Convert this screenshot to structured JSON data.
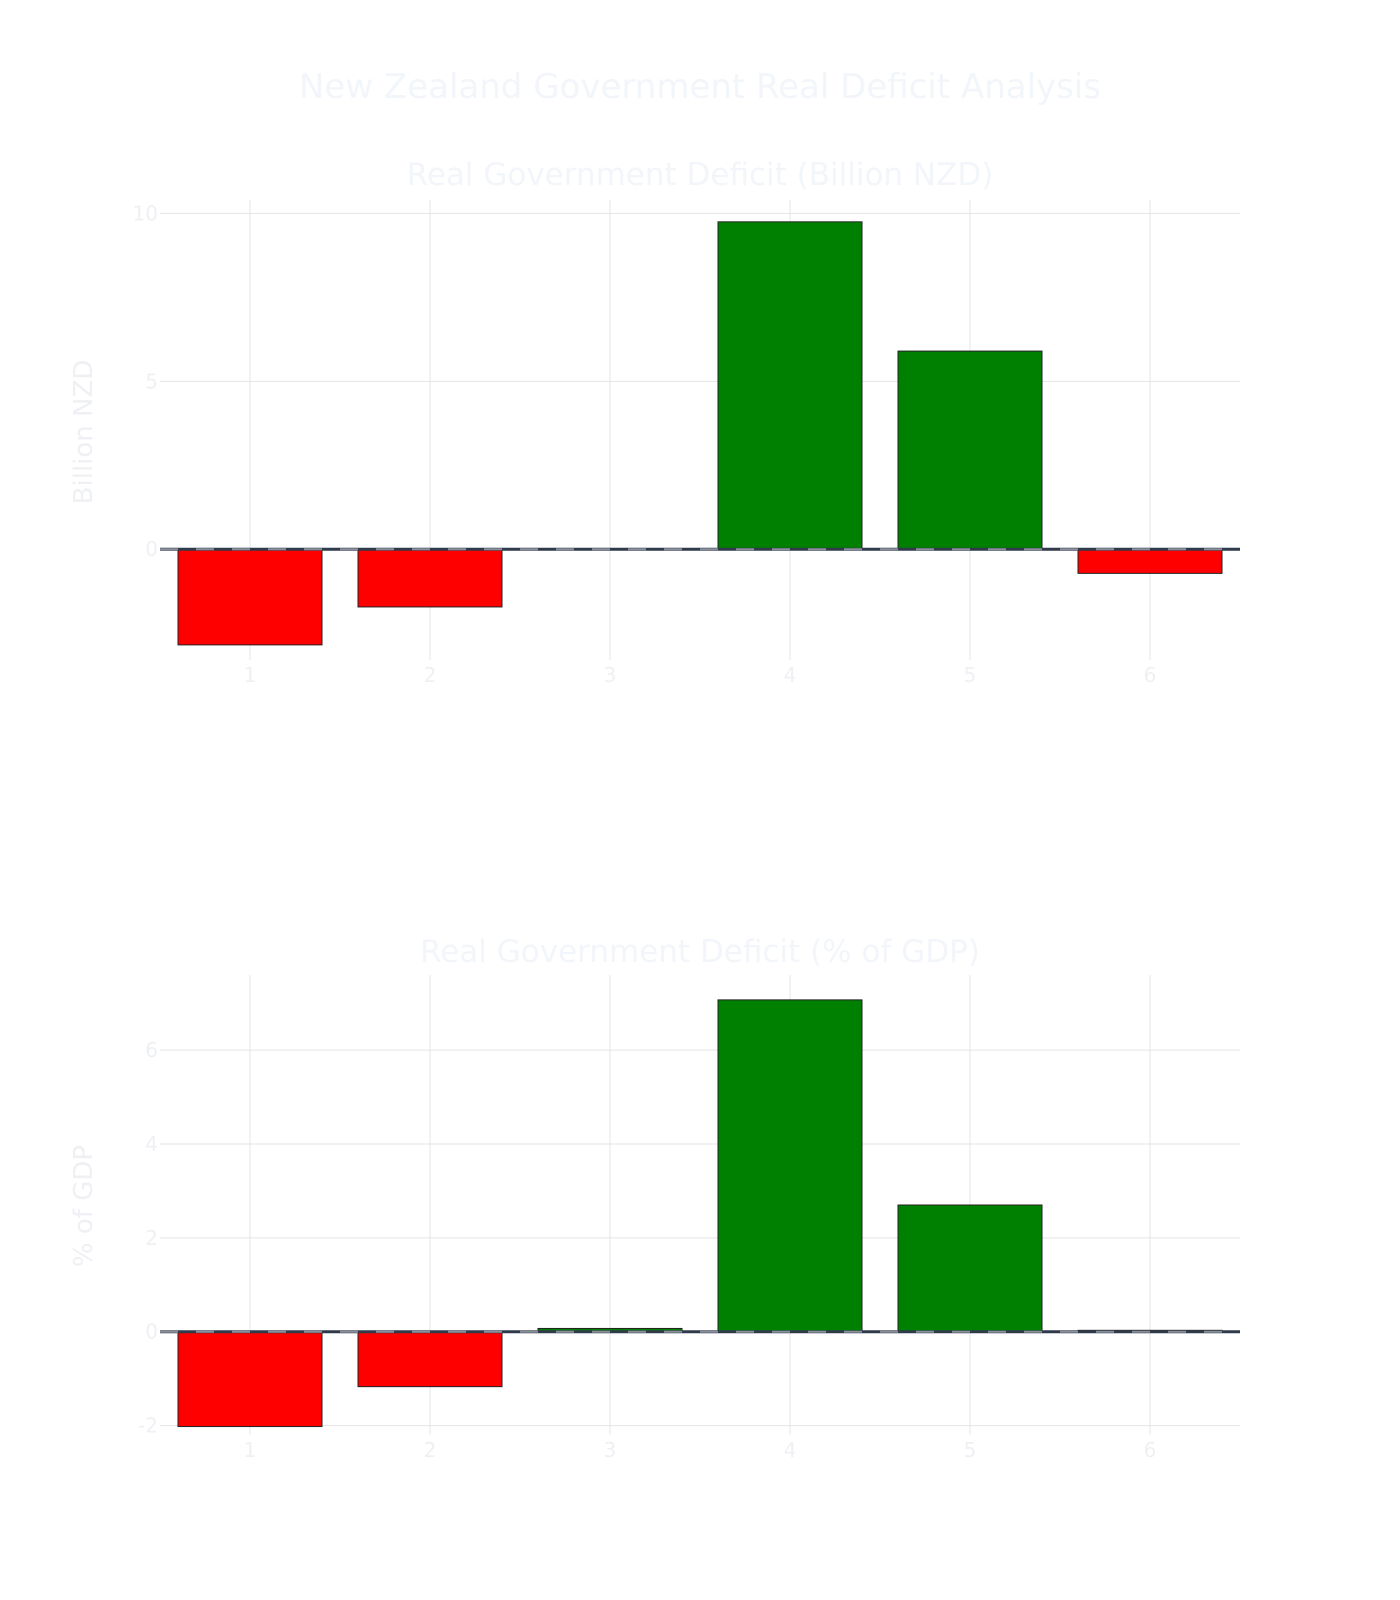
{
  "figure_title": "New Zealand Government Real Deficit Analysis",
  "colors": {
    "positive": "#008000",
    "negative": "#ff0000"
  },
  "chart_data": [
    {
      "type": "bar",
      "title": "Real Government Deficit (Billion NZD)",
      "ylabel": "Billion NZD",
      "xlabel": "",
      "categories": [
        "1",
        "2",
        "3",
        "4",
        "5",
        "6"
      ],
      "values": [
        -2.85,
        -1.72,
        0.0,
        9.75,
        5.9,
        -0.72
      ],
      "ylim": [
        -3.3,
        10.4
      ],
      "yticks": [
        0,
        5,
        10
      ],
      "grid": true,
      "legend": "none"
    },
    {
      "type": "bar",
      "title": "Real Government Deficit (% of GDP)",
      "ylabel": "% of GDP",
      "xlabel": "",
      "categories": [
        "1",
        "2",
        "3",
        "4",
        "5",
        "6"
      ],
      "values": [
        -2.02,
        -1.17,
        0.07,
        7.07,
        2.7,
        0.03
      ],
      "ylim": [
        -2.2,
        7.6
      ],
      "yticks": [
        -2,
        0,
        2,
        4,
        6
      ],
      "grid": true,
      "legend": "none"
    }
  ]
}
